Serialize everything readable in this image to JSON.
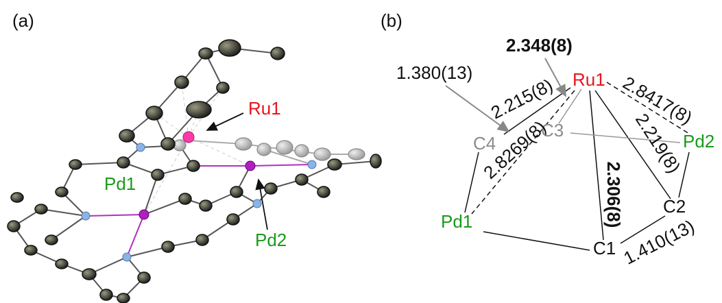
{
  "panel_a": {
    "label": "(a)",
    "atoms": [
      "Ru1",
      "Pd1",
      "Pd2"
    ]
  },
  "panel_b": {
    "label": "(b)",
    "atoms": [
      "Ru1",
      "C3",
      "C4",
      "Pd2",
      "C2",
      "C1",
      "Pd1"
    ],
    "bonds": [
      "2.348(8)",
      "1.380(13)",
      "2.215(8)",
      "2.8269(8)",
      "2.8417(8)",
      "2.219(8)",
      "2.306(8)",
      "1.410(13)"
    ]
  }
}
